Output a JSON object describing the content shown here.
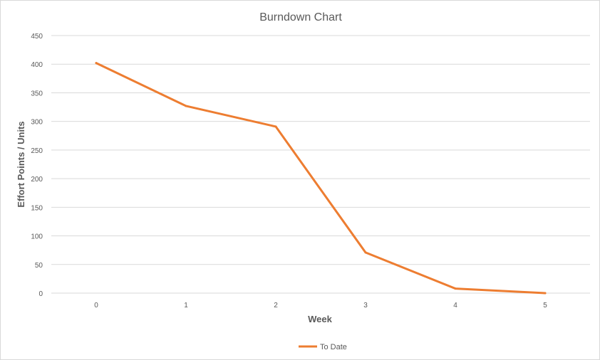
{
  "chart_data": {
    "type": "line",
    "title": "Burndown Chart",
    "xlabel": "Week",
    "ylabel": "Effort Points / Units",
    "x": [
      0,
      1,
      2,
      3,
      4,
      5
    ],
    "x_tick_labels": [
      "0",
      "1",
      "2",
      "3",
      "4",
      "5"
    ],
    "ylim": [
      0,
      450
    ],
    "y_tick_labels": [
      "0",
      "50",
      "100",
      "150",
      "200",
      "250",
      "300",
      "350",
      "400",
      "450"
    ],
    "y_ticks": [
      0,
      50,
      100,
      150,
      200,
      250,
      300,
      350,
      400,
      450
    ],
    "grid": true,
    "legend_position": "bottom",
    "series": [
      {
        "name": "To Date",
        "color": "#ED7D31",
        "values": [
          402,
          327,
          291,
          71,
          8,
          0
        ]
      }
    ]
  }
}
